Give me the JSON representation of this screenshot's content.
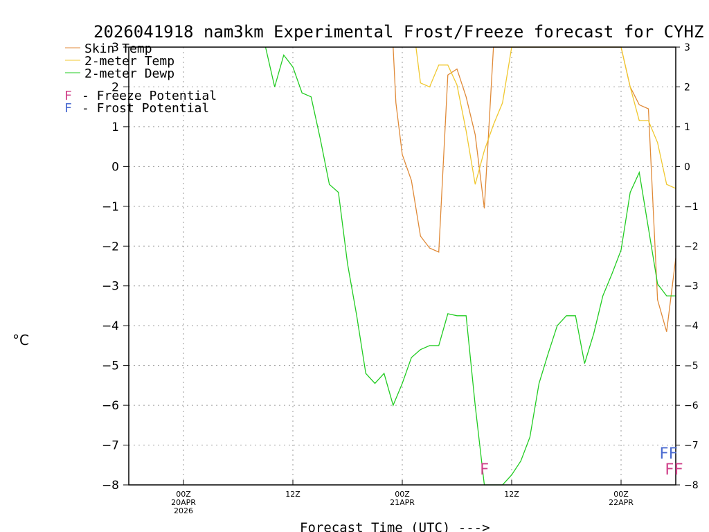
{
  "chart_data": {
    "type": "line",
    "title": "2026041918 nam3km Experimental Frost/Freeze forecast for CYHZ",
    "xlabel": "Forecast Time (UTC) --->",
    "ylabel": "°C",
    "ylim": [
      -8,
      3
    ],
    "xlim": [
      0,
      60
    ],
    "y_ticks": [
      "3",
      "2",
      "1",
      "0",
      "−1",
      "−2",
      "−3",
      "−4",
      "−5",
      "−6",
      "−7",
      "−8"
    ],
    "x_ticks": [
      {
        "x": 6,
        "l1": "00Z",
        "l2": "20APR",
        "l3": "2026"
      },
      {
        "x": 18,
        "l1": "12Z",
        "l2": "",
        "l3": ""
      },
      {
        "x": 30,
        "l1": "00Z",
        "l2": "21APR",
        "l3": ""
      },
      {
        "x": 42,
        "l1": "12Z",
        "l2": "",
        "l3": ""
      },
      {
        "x": 54,
        "l1": "00Z",
        "l2": "22APR",
        "l3": ""
      }
    ],
    "legend": {
      "skin": "Skin Temp",
      "t2m": "2-meter Temp",
      "dewp": "2-meter Dewp",
      "freeze_marker": "F",
      "freeze_text": "- Freeze Potential",
      "frost_marker": "F",
      "frost_text": "- Frost Potential"
    },
    "series": [
      {
        "name": "Skin Temp",
        "color": "#e08a38",
        "x": [
          29,
          29.3,
          30,
          31,
          32,
          33,
          34,
          35,
          36,
          37,
          38,
          39,
          40,
          54,
          55,
          56,
          57,
          58,
          59,
          60
        ],
        "y": [
          3,
          1.6,
          0.3,
          -0.35,
          -1.75,
          -2.05,
          -2.15,
          2.3,
          2.45,
          1.75,
          0.8,
          -1.05,
          3,
          3,
          2,
          1.55,
          1.45,
          -3.35,
          -4.15,
          -2.3
        ]
      },
      {
        "name": "2-meter Temp",
        "color": "#f0c830",
        "x": [
          31.5,
          32,
          33,
          34,
          35,
          36,
          37,
          38,
          39,
          40,
          41,
          42,
          43,
          54,
          55,
          56,
          57,
          58,
          59,
          60
        ],
        "y": [
          3,
          2.1,
          2.0,
          2.55,
          2.55,
          2.05,
          0.9,
          -0.45,
          0.4,
          1.05,
          1.6,
          3,
          3,
          3,
          2.0,
          1.15,
          1.15,
          0.6,
          -0.45,
          -0.55
        ]
      },
      {
        "name": "2-meter Dewp",
        "color": "#22cc22",
        "x": [
          15,
          16,
          17,
          18,
          19,
          20,
          21,
          22,
          23,
          24,
          25,
          26,
          27,
          28,
          29,
          30,
          31,
          32,
          33,
          34,
          35,
          36,
          37,
          38,
          39,
          40,
          41,
          42,
          43,
          44,
          45,
          46,
          47,
          48,
          49,
          50,
          51,
          52,
          53,
          54,
          55,
          56,
          57,
          58,
          59,
          60
        ],
        "y": [
          3,
          2.0,
          2.8,
          2.5,
          1.85,
          1.75,
          0.7,
          -0.45,
          -0.65,
          -2.45,
          -3.75,
          -5.2,
          -5.45,
          -5.2,
          -6.0,
          -5.45,
          -4.8,
          -4.6,
          -4.5,
          -4.5,
          -3.7,
          -3.75,
          -3.75,
          -6.0,
          -8.0,
          -8.0,
          -8.0,
          -7.75,
          -7.4,
          -6.8,
          -5.45,
          -4.7,
          -4.0,
          -3.75,
          -3.75,
          -4.95,
          -4.2,
          -3.25,
          -2.7,
          -2.1,
          -0.65,
          -0.15,
          -1.55,
          -2.95,
          -3.25,
          -3.25
        ]
      }
    ],
    "markers": [
      {
        "label": "F",
        "kind": "freeze",
        "x": 39,
        "y": -7.6,
        "color": "#d0408a"
      },
      {
        "label": "FF",
        "kind": "frost",
        "x": 59.2,
        "y": -7.2,
        "color": "#4a6ad0"
      },
      {
        "label": "FF",
        "kind": "freeze",
        "x": 59.8,
        "y": -7.6,
        "color": "#d0408a"
      }
    ]
  }
}
